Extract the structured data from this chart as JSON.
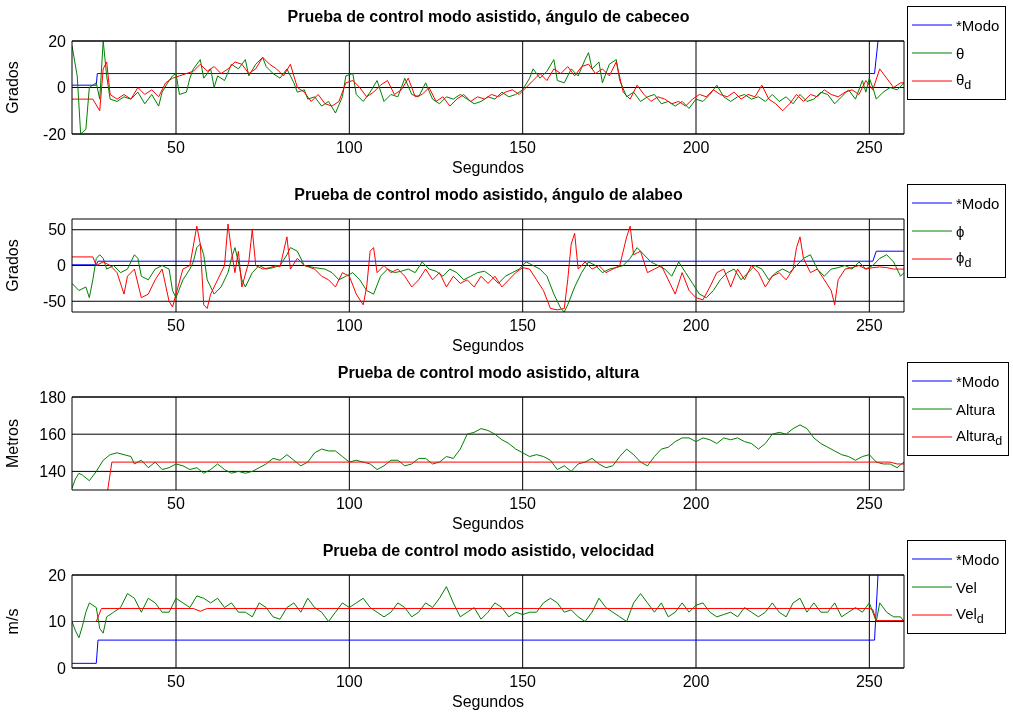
{
  "chart_data": [
    {
      "type": "line",
      "title": "Prueba de control modo asistido, ángulo de cabeceo",
      "xlabel": "Segundos",
      "ylabel": "Grados",
      "xlim": [
        20,
        260
      ],
      "xticks": [
        50,
        100,
        150,
        200,
        250
      ],
      "ylim": [
        -20,
        20
      ],
      "yticks": [
        -20,
        0,
        20
      ],
      "grid": true,
      "legend": "top right",
      "series": [
        {
          "name": "*Modo",
          "color": "#0000ff",
          "x": [
            20,
            27,
            27.3,
            251.5,
            252.5
          ],
          "values": [
            1,
            1,
            6,
            6,
            20
          ]
        },
        {
          "name": "θ",
          "color": "#008000",
          "x": [
            20,
            21.5,
            22.5,
            24,
            25,
            27,
            28,
            29,
            30,
            31,
            33,
            35,
            37,
            39,
            41,
            43,
            45,
            46,
            48,
            49,
            50,
            51,
            53,
            54,
            55,
            57,
            58,
            60,
            61,
            62,
            64,
            66,
            68,
            70,
            71,
            73,
            75,
            76,
            78,
            80,
            82,
            84,
            85,
            87,
            88,
            90,
            92,
            94,
            96,
            98,
            99,
            101,
            102,
            104,
            106,
            108,
            110,
            112,
            114,
            116,
            118,
            120,
            122,
            124,
            126,
            128,
            130,
            132,
            134,
            136,
            138,
            140,
            142,
            144,
            146,
            148,
            150,
            152,
            153,
            155,
            157,
            159,
            160,
            162,
            164,
            166,
            168,
            169,
            170,
            172,
            173,
            175,
            177,
            178,
            180,
            182,
            184,
            186,
            188,
            190,
            192,
            194,
            196,
            198,
            200,
            202,
            204,
            206,
            208,
            210,
            212,
            214,
            216,
            218,
            220,
            222,
            224,
            226,
            228,
            230,
            232,
            234,
            236,
            238,
            240,
            242,
            244,
            246,
            248,
            249,
            250,
            251,
            252,
            254,
            256,
            258,
            260
          ],
          "values": [
            18,
            5,
            -20,
            -18,
            0,
            2,
            -5,
            20,
            5,
            -5,
            -6,
            -4,
            -5,
            -2,
            -7,
            -3,
            -8,
            -2,
            3,
            5,
            6,
            -3,
            -2,
            4,
            8,
            12,
            4,
            8,
            0,
            5,
            3,
            10,
            8,
            12,
            5,
            10,
            13,
            9,
            6,
            4,
            8,
            2,
            -2,
            -1,
            -5,
            -4,
            -8,
            -6,
            -11,
            -4,
            5,
            6,
            -3,
            -6,
            -2,
            3,
            -6,
            -3,
            -4,
            4,
            -3,
            -4,
            2,
            -5,
            -7,
            -4,
            -5,
            -3,
            -5,
            -7,
            -6,
            -4,
            -5,
            -2,
            -4,
            -3,
            -1,
            4,
            8,
            4,
            7,
            12,
            3,
            2,
            8,
            5,
            12,
            15,
            8,
            11,
            2,
            10,
            12,
            3,
            -4,
            -2,
            -6,
            -4,
            -3,
            -7,
            -6,
            -8,
            -6,
            -9,
            -5,
            -6,
            -3,
            1,
            -4,
            -6,
            -4,
            -3,
            -5,
            -4,
            -6,
            -3,
            -6,
            -4,
            -7,
            -3,
            -6,
            -5,
            -2,
            -3,
            -7,
            -4,
            -1,
            -5,
            3,
            -2,
            4,
            0,
            -5,
            -2,
            0,
            -1,
            2
          ]
        },
        {
          "name": "θ$_{d}$",
          "color": "#ff0000",
          "x": [
            20,
            26,
            28,
            29,
            30,
            31,
            33,
            35,
            37,
            39,
            41,
            43,
            45,
            47,
            49,
            51,
            53,
            55,
            57,
            59,
            61,
            63,
            65,
            67,
            69,
            71,
            73,
            75,
            77,
            79,
            81,
            83,
            85,
            87,
            89,
            91,
            93,
            95,
            97,
            99,
            101,
            103,
            105,
            107,
            109,
            111,
            113,
            115,
            117,
            119,
            121,
            123,
            125,
            127,
            129,
            131,
            133,
            135,
            137,
            139,
            141,
            143,
            145,
            147,
            149,
            151,
            153,
            155,
            157,
            159,
            161,
            163,
            165,
            167,
            169,
            171,
            173,
            175,
            177,
            179,
            181,
            183,
            185,
            187,
            189,
            191,
            193,
            195,
            197,
            199,
            201,
            203,
            205,
            207,
            209,
            211,
            213,
            215,
            217,
            219,
            221,
            223,
            225,
            227,
            229,
            231,
            233,
            235,
            237,
            239,
            241,
            243,
            245,
            247,
            249,
            251,
            253,
            255,
            257,
            259,
            260
          ],
          "values": [
            -5,
            -5,
            -10,
            8,
            11,
            -3,
            -5,
            -3,
            -5,
            0,
            -3,
            -1,
            -4,
            2,
            4,
            5,
            6,
            7,
            10,
            7,
            9,
            6,
            8,
            11,
            10,
            6,
            8,
            13,
            10,
            8,
            5,
            10,
            0,
            -2,
            -6,
            -3,
            -7,
            -8,
            -6,
            2,
            3,
            0,
            -4,
            -2,
            1,
            3,
            -3,
            -1,
            4,
            -4,
            -3,
            0,
            -6,
            -4,
            -8,
            -5,
            -3,
            -6,
            -4,
            -5,
            -3,
            -4,
            -2,
            -1,
            -3,
            0,
            3,
            6,
            3,
            8,
            6,
            9,
            5,
            9,
            10,
            6,
            8,
            5,
            11,
            -2,
            -5,
            1,
            -3,
            -6,
            -4,
            -5,
            -7,
            -6,
            -8,
            -5,
            -3,
            -4,
            -1,
            -3,
            -4,
            -2,
            -5,
            -3,
            -4,
            1,
            -5,
            -7,
            -10,
            -7,
            -3,
            -6,
            -3,
            -4,
            -1,
            -3,
            -4,
            -2,
            -1,
            -3,
            3,
            -1,
            8,
            4,
            0,
            2,
            2
          ]
        }
      ]
    },
    {
      "type": "line",
      "title": "Prueba de control modo asistido, ángulo de alabeo",
      "xlabel": "Segundos",
      "ylabel": "Grados",
      "xlim": [
        20,
        260
      ],
      "xticks": [
        50,
        100,
        150,
        200,
        250
      ],
      "ylim": [
        -65,
        65
      ],
      "yticks": [
        -50,
        0,
        50
      ],
      "grid": true,
      "legend": "top right",
      "series": [
        {
          "name": "*Modo",
          "color": "#0000ff",
          "x": [
            20,
            27,
            27.5,
            251,
            252,
            260
          ],
          "values": [
            1,
            1,
            6,
            6,
            20,
            20
          ]
        },
        {
          "name": "ϕ",
          "color": "#008000",
          "x": [
            20,
            22,
            24,
            25,
            26,
            27,
            28,
            29,
            30,
            32,
            34,
            36,
            38,
            39,
            40,
            42,
            44,
            46,
            48,
            49,
            50,
            52,
            54,
            55,
            56,
            57,
            58,
            59,
            61,
            63,
            65,
            66,
            67,
            68,
            69,
            70,
            72,
            74,
            76,
            78,
            80,
            82,
            83,
            85,
            87,
            90,
            93,
            95,
            97,
            99,
            101,
            103,
            105,
            107,
            109,
            111,
            113,
            115,
            117,
            119,
            121,
            123,
            125,
            127,
            129,
            131,
            133,
            135,
            137,
            139,
            141,
            143,
            145,
            147,
            149,
            151,
            153,
            155,
            157,
            159,
            161,
            162,
            163,
            165,
            167,
            169,
            171,
            173,
            175,
            177,
            179,
            181,
            183,
            185,
            187,
            189,
            191,
            193,
            195,
            197,
            199,
            201,
            203,
            205,
            207,
            209,
            211,
            213,
            215,
            217,
            219,
            221,
            223,
            225,
            227,
            229,
            231,
            233,
            235,
            237,
            239,
            241,
            243,
            245,
            247,
            249,
            251,
            253,
            255,
            257,
            259,
            260
          ],
          "values": [
            -25,
            -35,
            -30,
            -45,
            -20,
            10,
            15,
            10,
            -5,
            0,
            -10,
            -5,
            15,
            10,
            -15,
            -20,
            -5,
            0,
            -5,
            -35,
            -45,
            -20,
            -5,
            5,
            25,
            30,
            15,
            -20,
            -40,
            -30,
            -10,
            10,
            25,
            5,
            -20,
            -30,
            -10,
            0,
            -5,
            -3,
            0,
            15,
            25,
            20,
            0,
            -3,
            -5,
            -10,
            -20,
            -15,
            -10,
            -20,
            -35,
            -40,
            -15,
            -5,
            -10,
            -8,
            -5,
            -10,
            5,
            -5,
            -8,
            -15,
            -5,
            -10,
            -20,
            -15,
            -10,
            -8,
            -15,
            -25,
            -15,
            -10,
            -5,
            5,
            0,
            -5,
            -15,
            -40,
            -60,
            -65,
            -55,
            -30,
            -10,
            5,
            0,
            -10,
            -5,
            -3,
            0,
            10,
            25,
            15,
            5,
            0,
            -5,
            -15,
            5,
            -10,
            -25,
            -40,
            -45,
            -35,
            -20,
            -10,
            -5,
            -20,
            -10,
            0,
            -5,
            -20,
            -10,
            -5,
            -10,
            0,
            10,
            15,
            -5,
            -15,
            -5,
            -3,
            0,
            -5,
            5,
            -5,
            0,
            10,
            15,
            5,
            -15,
            -10
          ]
        },
        {
          "name": "ϕ$_{d}$",
          "color": "#ff0000",
          "x": [
            20,
            26,
            27,
            29,
            31,
            33,
            35,
            36,
            38,
            40,
            42,
            44,
            46,
            48,
            49,
            50,
            52,
            54,
            56,
            57,
            58,
            59,
            60,
            62,
            64,
            65,
            66,
            67,
            68,
            69,
            71,
            72,
            73,
            75,
            77,
            79,
            80,
            82,
            83,
            85,
            87,
            90,
            92,
            94,
            96,
            98,
            100,
            102,
            104,
            105,
            106,
            107,
            108,
            110,
            112,
            114,
            116,
            118,
            120,
            122,
            124,
            126,
            128,
            130,
            132,
            134,
            136,
            138,
            140,
            142,
            144,
            146,
            148,
            150,
            152,
            154,
            156,
            158,
            160,
            162,
            163,
            164,
            165,
            166,
            168,
            170,
            172,
            174,
            176,
            178,
            180,
            181,
            182,
            184,
            186,
            188,
            190,
            192,
            194,
            196,
            198,
            200,
            202,
            204,
            206,
            208,
            210,
            212,
            214,
            216,
            218,
            220,
            222,
            224,
            226,
            228,
            229,
            230,
            231,
            233,
            235,
            237,
            239,
            240,
            241,
            243,
            245,
            247,
            249,
            251,
            253,
            255,
            257,
            260
          ],
          "values": [
            12,
            12,
            0,
            5,
            0,
            -10,
            -40,
            -15,
            -5,
            -45,
            -40,
            -20,
            -5,
            -50,
            -58,
            -40,
            -5,
            0,
            55,
            30,
            -55,
            -60,
            -40,
            -20,
            0,
            58,
            20,
            -10,
            20,
            -30,
            5,
            50,
            0,
            -5,
            -3,
            0,
            -2,
            40,
            -5,
            10,
            0,
            -5,
            -15,
            -20,
            -30,
            -10,
            -15,
            -40,
            -55,
            -30,
            20,
            25,
            -10,
            0,
            -10,
            -5,
            -15,
            -30,
            -20,
            -5,
            -20,
            -10,
            -30,
            -15,
            -25,
            -20,
            -30,
            -15,
            -25,
            -15,
            -30,
            -20,
            -10,
            -3,
            -5,
            -20,
            -35,
            -60,
            -62,
            -60,
            -20,
            30,
            45,
            -5,
            5,
            -5,
            0,
            -10,
            -5,
            0,
            40,
            55,
            15,
            20,
            -10,
            -5,
            0,
            -20,
            -40,
            -10,
            -35,
            -45,
            -48,
            -30,
            -10,
            -5,
            -30,
            -5,
            -20,
            0,
            -10,
            -30,
            -15,
            -10,
            -20,
            -5,
            25,
            40,
            10,
            -10,
            -5,
            -20,
            -35,
            -55,
            -20,
            -5,
            -3,
            0,
            -5,
            -3,
            -2,
            -3,
            -5,
            -5
          ]
        }
      ]
    },
    {
      "type": "line",
      "title": "Prueba de control modo asistido, altura",
      "xlabel": "Segundos",
      "ylabel": "Metros",
      "xlim": [
        20,
        260
      ],
      "xticks": [
        50,
        100,
        150,
        200,
        250
      ],
      "ylim": [
        130,
        180
      ],
      "yticks": [
        140,
        160,
        180
      ],
      "grid": true,
      "legend": "top right",
      "series": [
        {
          "name": "*Modo",
          "color": "#0000ff"
        },
        {
          "name": "Altura",
          "color": "#008000",
          "x": [
            20,
            21,
            22,
            23,
            25,
            27,
            29,
            31,
            33,
            35,
            37,
            38,
            40,
            42,
            44,
            46,
            48,
            50,
            52,
            54,
            56,
            58,
            60,
            62,
            64,
            66,
            68,
            70,
            72,
            74,
            76,
            78,
            80,
            82,
            84,
            86,
            88,
            90,
            92,
            94,
            96,
            98,
            100,
            102,
            104,
            106,
            108,
            110,
            112,
            114,
            116,
            118,
            120,
            122,
            124,
            126,
            128,
            130,
            132,
            134,
            136,
            138,
            140,
            142,
            144,
            146,
            148,
            150,
            152,
            154,
            156,
            158,
            160,
            162,
            164,
            166,
            168,
            170,
            172,
            174,
            176,
            178,
            180,
            182,
            184,
            186,
            188,
            190,
            192,
            194,
            196,
            198,
            200,
            202,
            204,
            206,
            208,
            210,
            212,
            214,
            216,
            218,
            220,
            222,
            224,
            226,
            228,
            230,
            232,
            234,
            236,
            238,
            240,
            242,
            244,
            246,
            248,
            250,
            252,
            254,
            256,
            258,
            260
          ],
          "values": [
            131,
            136,
            139,
            138,
            135,
            140,
            146,
            149,
            150,
            149,
            148,
            144,
            146,
            142,
            145,
            141,
            142,
            144,
            143,
            141,
            142,
            139,
            141,
            144,
            141,
            139,
            140,
            139,
            140,
            142,
            144,
            147,
            146,
            149,
            146,
            143,
            145,
            150,
            152,
            151,
            151,
            148,
            145,
            146,
            145,
            144,
            141,
            143,
            146,
            146,
            143,
            144,
            147,
            147,
            144,
            145,
            148,
            147,
            152,
            160,
            161,
            163,
            162,
            160,
            157,
            155,
            152,
            150,
            148,
            149,
            148,
            146,
            141,
            143,
            140,
            144,
            145,
            147,
            144,
            142,
            143,
            148,
            152,
            149,
            145,
            143,
            148,
            152,
            153,
            156,
            158,
            158,
            156,
            158,
            157,
            155,
            158,
            157,
            158,
            156,
            155,
            152,
            155,
            160,
            161,
            160,
            163,
            165,
            163,
            158,
            155,
            153,
            151,
            149,
            148,
            146,
            148,
            149,
            145,
            144,
            144,
            142,
            145
          ]
        },
        {
          "name": "Altura$_{d}$",
          "color": "#ff0000",
          "x": [
            30.3,
            31.5,
            256,
            258,
            260
          ],
          "values": [
            130,
            145,
            145,
            144,
            144
          ]
        }
      ]
    },
    {
      "type": "line",
      "title": "Prueba de control modo asistido, velocidad",
      "xlabel": "Segundos",
      "ylabel": "m/s",
      "xlim": [
        20,
        260
      ],
      "xticks": [
        50,
        100,
        150,
        200,
        250
      ],
      "ylim": [
        0,
        20
      ],
      "yticks": [
        0,
        10,
        20
      ],
      "grid": true,
      "legend": "top right",
      "series": [
        {
          "name": "*Modo",
          "color": "#0000ff",
          "x": [
            20,
            27,
            27.5,
            251.5,
            252.5
          ],
          "values": [
            1,
            1,
            6,
            6,
            20
          ]
        },
        {
          "name": "Vel",
          "color": "#008000",
          "x": [
            20,
            21,
            22,
            23,
            24,
            25,
            27,
            28,
            29,
            30,
            32,
            34,
            36,
            38,
            40,
            42,
            44,
            46,
            48,
            50,
            52,
            54,
            56,
            58,
            60,
            62,
            64,
            66,
            68,
            70,
            72,
            74,
            76,
            78,
            80,
            82,
            84,
            86,
            88,
            90,
            92,
            94,
            96,
            98,
            100,
            102,
            104,
            106,
            108,
            110,
            112,
            114,
            116,
            118,
            120,
            122,
            124,
            126,
            128,
            130,
            132,
            134,
            136,
            138,
            140,
            142,
            144,
            146,
            148,
            150,
            152,
            154,
            156,
            158,
            160,
            162,
            164,
            166,
            168,
            170,
            172,
            174,
            176,
            178,
            180,
            182,
            184,
            186,
            188,
            190,
            192,
            194,
            196,
            198,
            200,
            202,
            204,
            206,
            208,
            210,
            212,
            214,
            216,
            218,
            220,
            222,
            224,
            226,
            228,
            230,
            232,
            234,
            236,
            238,
            240,
            242,
            244,
            246,
            248,
            250,
            252,
            253,
            255,
            257,
            259,
            260
          ],
          "values": [
            10,
            8,
            6.5,
            9,
            12,
            14,
            13,
            8.5,
            7.5,
            11,
            12,
            13,
            16,
            15,
            12,
            15,
            14,
            12,
            12,
            15,
            14,
            13,
            15.5,
            15,
            14,
            15,
            13,
            14,
            12,
            12,
            11,
            14,
            13,
            11,
            10.5,
            13,
            14,
            12,
            15,
            13,
            12,
            10,
            12,
            14,
            13,
            14,
            15,
            13,
            12,
            11,
            12,
            14,
            13,
            11,
            12,
            14,
            13,
            15,
            17.5,
            14,
            11,
            12,
            13,
            10.5,
            12,
            14,
            13,
            11,
            12,
            11.5,
            12,
            12,
            14,
            15,
            14,
            12,
            12.5,
            11,
            10,
            12,
            15,
            13,
            12,
            11,
            10,
            14,
            16,
            14,
            12,
            14,
            11,
            12,
            14,
            12,
            13.5,
            14,
            12,
            11,
            11.5,
            12,
            11,
            13,
            12,
            11,
            12,
            14,
            12,
            11,
            14,
            15,
            12,
            14,
            12,
            12,
            14,
            11,
            12,
            13,
            12,
            14,
            10,
            14,
            12,
            11,
            11,
            10
          ]
        },
        {
          "name": "Vel$_{d}$",
          "color": "#ff0000",
          "x": [
            20,
            27,
            28.5,
            55,
            57,
            59,
            250,
            251,
            252,
            260
          ],
          "values": [
            10,
            10,
            12.8,
            12.8,
            12.2,
            12.8,
            12.8,
            12.6,
            10.2,
            10.2
          ]
        }
      ]
    }
  ]
}
